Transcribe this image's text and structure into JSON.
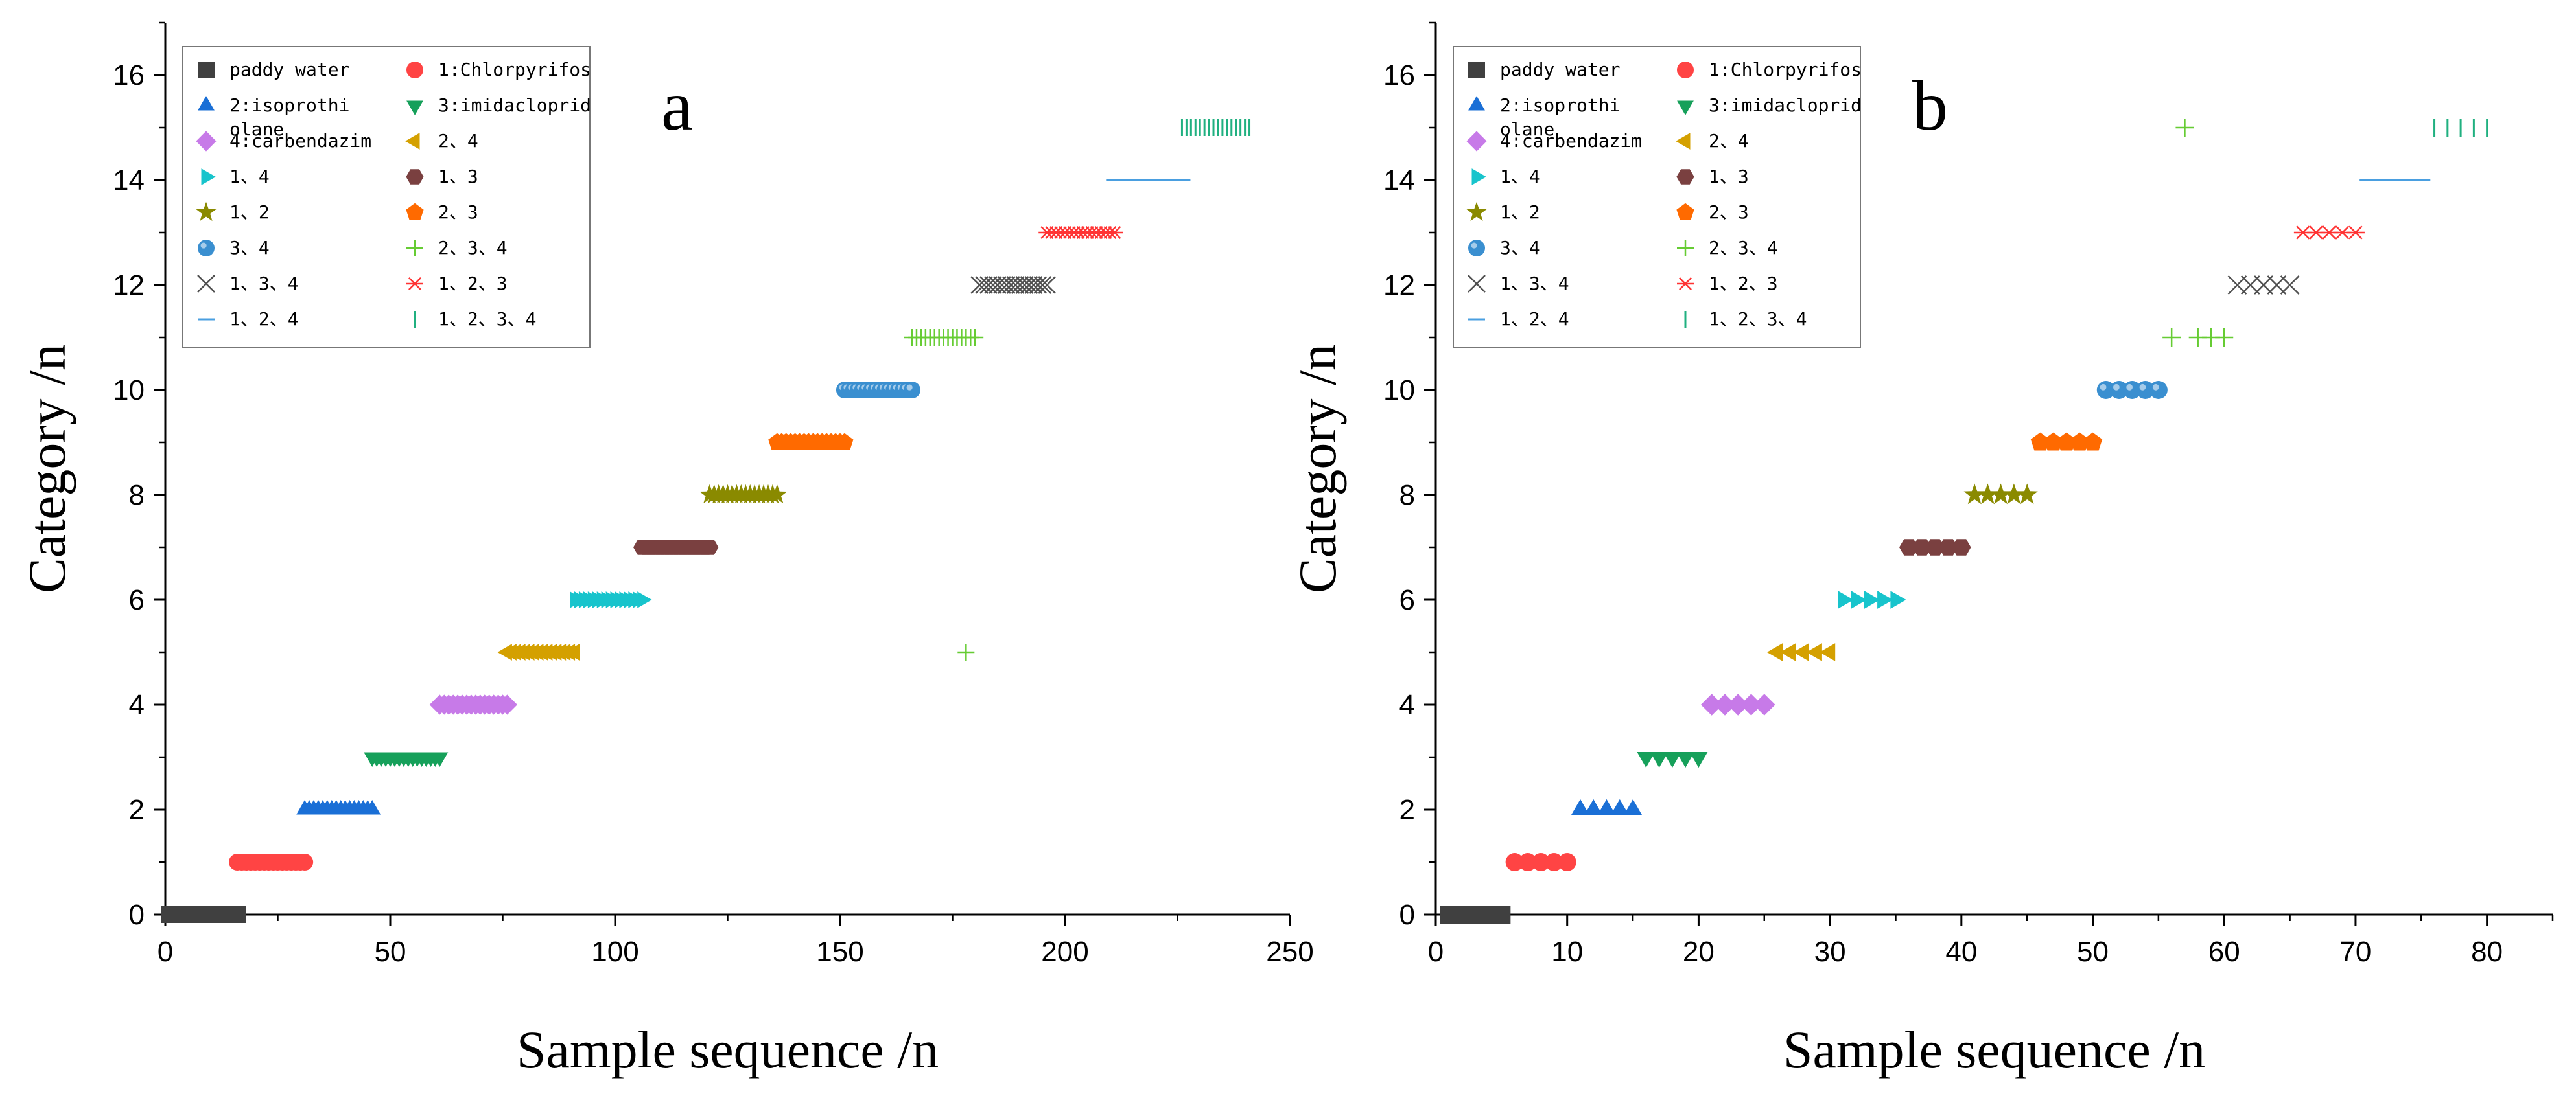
{
  "chart_data": [
    {
      "type": "scatter",
      "panel_label": "a",
      "xlabel": "Sample sequence /n",
      "ylabel": "Category /n",
      "xlim": [
        0,
        250
      ],
      "ylim": [
        0,
        17
      ],
      "xticks": [
        0,
        50,
        100,
        150,
        200,
        250
      ],
      "yticks": [
        0,
        2,
        4,
        6,
        8,
        10,
        12,
        14,
        16
      ],
      "grid": false,
      "legend_position": "top-left",
      "series": [
        {
          "name": "paddy water",
          "category": 0,
          "x_start": 1,
          "x_end": 16
        },
        {
          "name": "1:Chlorpyrifos",
          "category": 1,
          "x_start": 16,
          "x_end": 31
        },
        {
          "name": "2:isoprothi olane",
          "category": 2,
          "x_start": 31,
          "x_end": 46
        },
        {
          "name": "3:imidacloprid",
          "category": 3,
          "x_start": 46,
          "x_end": 61
        },
        {
          "name": "4:carbendazim",
          "category": 4,
          "x_start": 61,
          "x_end": 76
        },
        {
          "name": "2、4",
          "category": 5,
          "x_start": 76,
          "x_end": 91
        },
        {
          "name": "1、4",
          "category": 6,
          "x_start": 91,
          "x_end": 106
        },
        {
          "name": "1、3",
          "category": 7,
          "x_start": 106,
          "x_end": 121
        },
        {
          "name": "1、2",
          "category": 8,
          "x_start": 121,
          "x_end": 136
        },
        {
          "name": "2、3",
          "category": 9,
          "x_start": 136,
          "x_end": 151
        },
        {
          "name": "3、4",
          "category": 10,
          "x_start": 151,
          "x_end": 166
        },
        {
          "name": "2、3、4",
          "category": 11,
          "x_start": 166,
          "x_end": 180,
          "extra_points": [
            [
              178,
              5
            ]
          ]
        },
        {
          "name": "1、3、4",
          "category": 12,
          "x_start": 181,
          "x_end": 196
        },
        {
          "name": "1、2、3",
          "category": 13,
          "x_start": 196,
          "x_end": 211
        },
        {
          "name": "1、2、4",
          "category": 14,
          "x_start": 211,
          "x_end": 226
        },
        {
          "name": "1、2、3、4",
          "category": 15,
          "x_start": 226,
          "x_end": 241
        }
      ]
    },
    {
      "type": "scatter",
      "panel_label": "b",
      "xlabel": "Sample sequence /n",
      "ylabel": "Category /n",
      "xlim": [
        0,
        85
      ],
      "ylim": [
        0,
        17
      ],
      "xticks": [
        0,
        10,
        20,
        30,
        40,
        50,
        60,
        70,
        80
      ],
      "yticks": [
        0,
        2,
        4,
        6,
        8,
        10,
        12,
        14,
        16
      ],
      "grid": false,
      "legend_position": "top-left",
      "series": [
        {
          "name": "paddy water",
          "category": 0,
          "x_start": 1,
          "x_end": 5
        },
        {
          "name": "1:Chlorpyrifos",
          "category": 1,
          "x_start": 6,
          "x_end": 10
        },
        {
          "name": "2:isoprothi olane",
          "category": 2,
          "x_start": 11,
          "x_end": 15
        },
        {
          "name": "3:imidacloprid",
          "category": 3,
          "x_start": 16,
          "x_end": 20
        },
        {
          "name": "4:carbendazim",
          "category": 4,
          "x_start": 21,
          "x_end": 25
        },
        {
          "name": "2、4",
          "category": 5,
          "x_start": 26,
          "x_end": 30
        },
        {
          "name": "1、4",
          "category": 6,
          "x_start": 31,
          "x_end": 35
        },
        {
          "name": "1、3",
          "category": 7,
          "x_start": 36,
          "x_end": 40
        },
        {
          "name": "1、2",
          "category": 8,
          "x_start": 41,
          "x_end": 45
        },
        {
          "name": "2、3",
          "category": 9,
          "x_start": 46,
          "x_end": 50
        },
        {
          "name": "3、4",
          "category": 10,
          "x_start": 51,
          "x_end": 55
        },
        {
          "name": "2、3、4",
          "category": 11,
          "points": [
            [
              56,
              11
            ],
            [
              57,
              15
            ],
            [
              58,
              11
            ],
            [
              59,
              11
            ],
            [
              60,
              11
            ]
          ]
        },
        {
          "name": "1、3、4",
          "category": 12,
          "x_start": 61,
          "x_end": 65
        },
        {
          "name": "1、2、3",
          "category": 13,
          "x_start": 66,
          "x_end": 70
        },
        {
          "name": "1、2、4",
          "category": 14,
          "x_start": 71,
          "x_end": 75
        },
        {
          "name": "1、2、3、4",
          "category": 15,
          "x_start": 76,
          "x_end": 80
        }
      ]
    }
  ],
  "styles": [
    {
      "marker": "square",
      "color": "#404040"
    },
    {
      "marker": "circle",
      "color": "#ff4444"
    },
    {
      "marker": "triangle-up",
      "color": "#1a6fd6"
    },
    {
      "marker": "triangle-down",
      "color": "#16a05a"
    },
    {
      "marker": "diamond",
      "color": "#c77ae8"
    },
    {
      "marker": "triangle-left",
      "color": "#d4a000"
    },
    {
      "marker": "triangle-right",
      "color": "#18c4cc"
    },
    {
      "marker": "hexagon",
      "color": "#7a4040"
    },
    {
      "marker": "star",
      "color": "#8a8a00"
    },
    {
      "marker": "pentagon",
      "color": "#ff6a00"
    },
    {
      "marker": "sphere",
      "color": "#3a8fd0"
    },
    {
      "marker": "plus",
      "color": "#66cc33"
    },
    {
      "marker": "x",
      "color": "#505050"
    },
    {
      "marker": "asterisk",
      "color": "#ff3333"
    },
    {
      "marker": "hline",
      "color": "#4a9fe0"
    },
    {
      "marker": "vline",
      "color": "#20b080"
    }
  ]
}
